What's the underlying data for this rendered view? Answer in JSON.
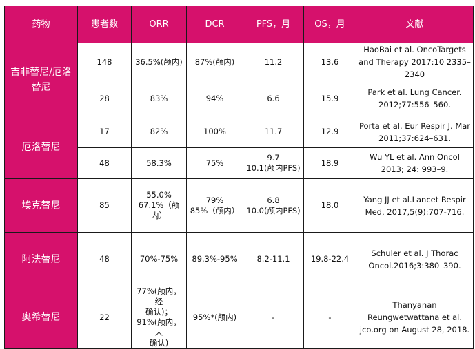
{
  "headers": [
    "药物",
    "患者数",
    "ORR",
    "DCR",
    "PFS，月",
    "OS，月",
    "文献"
  ],
  "groups": [
    {
      "drug": "吉非替尼/厄洛替尼",
      "rows": [
        {
          "n": "148",
          "orr": [
            "36.5%(颅内)"
          ],
          "dcr": [
            "87%(颅内)"
          ],
          "pfs": [
            "11.2"
          ],
          "os": "13.6",
          "ref": "HaoBai et al. OncoTargets and Therapy 2017:10 2335–2340"
        },
        {
          "n": "28",
          "orr": [
            "83%"
          ],
          "dcr": [
            "94%"
          ],
          "pfs": [
            "6.6"
          ],
          "os": "15.9",
          "ref": "Park et al. Lung Cancer. 2012;77:556–560."
        }
      ]
    },
    {
      "drug": "厄洛替尼",
      "rows": [
        {
          "n": "17",
          "orr": [
            "82%"
          ],
          "dcr": [
            "100%"
          ],
          "pfs": [
            "11.7"
          ],
          "os": "12.9",
          "ref": "Porta et al. Eur Respir J. Mar 2011;37:624–631."
        },
        {
          "n": "48",
          "orr": [
            "58.3%"
          ],
          "dcr": [
            "75%"
          ],
          "pfs": [
            "9.7",
            "10.1(颅内PFS)"
          ],
          "os": "18.9",
          "ref": "Wu YL et al. Ann Oncol 2013; 24: 993–9."
        }
      ]
    },
    {
      "drug": "埃克替尼",
      "rows": [
        {
          "n": "85",
          "orr": [
            "55.0%",
            "67.1%（颅内）"
          ],
          "dcr": [
            "79%",
            "85%（颅内）"
          ],
          "pfs": [
            "6.8",
            "10.0(颅内PFS)"
          ],
          "os": "18.0",
          "ref": "Yang JJ et al.Lancet Respir Med, 2017,5(9):707-716."
        }
      ]
    },
    {
      "drug": "阿法替尼",
      "rows": [
        {
          "n": "48",
          "orr": [
            "70%-75%"
          ],
          "dcr": [
            "89.3%-95%"
          ],
          "pfs": [
            "8.2-11.1"
          ],
          "os": "19.8-22.4",
          "ref": "Schuler et al. J Thorac Oncol.2016;3:380–390."
        }
      ]
    },
    {
      "drug": "奥希替尼",
      "rows": [
        {
          "n": "22",
          "orr": [
            "77%(颅内，经",
            "确认)；",
            "91%(颅内，未",
            "确认)"
          ],
          "dcr": [
            "95%*(颅内)"
          ],
          "pfs": [
            "-"
          ],
          "os": "-",
          "ref": "Thanyanan Reungwetwattana et al. jco.org on August 28, 2018."
        }
      ]
    }
  ]
}
